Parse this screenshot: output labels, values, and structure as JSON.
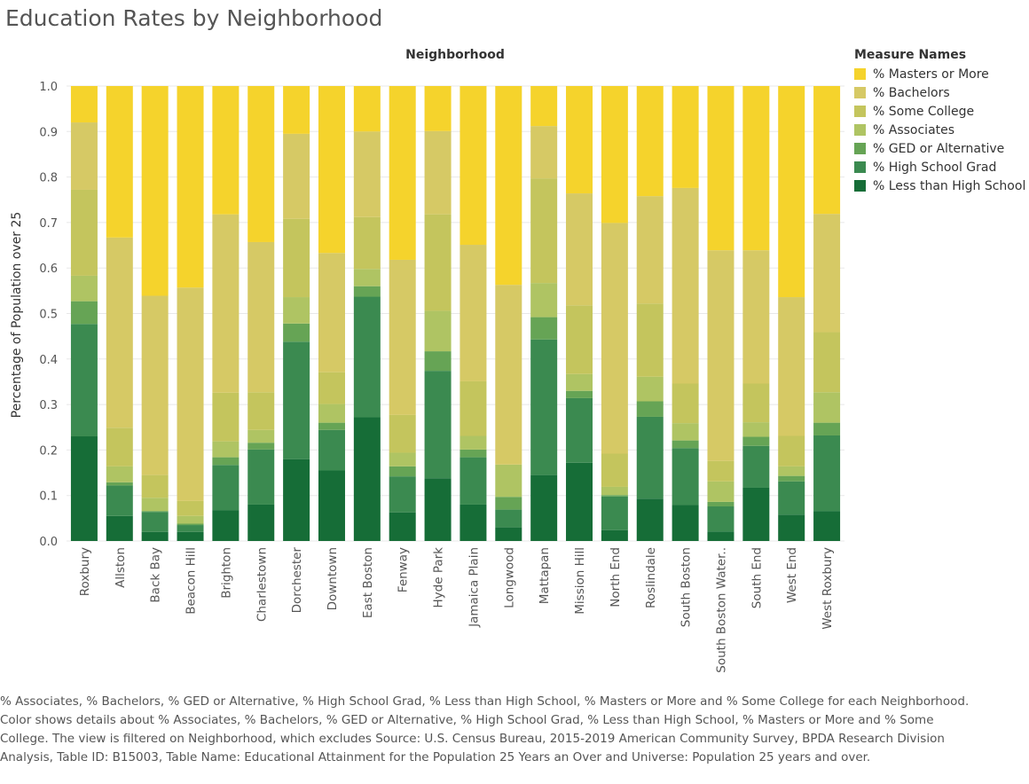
{
  "title": "Education Rates by Neighborhood",
  "legend": {
    "title": "Measure Names",
    "items": [
      {
        "label": "% Masters or More",
        "color": "#f5d32c"
      },
      {
        "label": "% Bachelors",
        "color": "#d6c965"
      },
      {
        "label": "% Some College",
        "color": "#c4c55d"
      },
      {
        "label": "% Associates",
        "color": "#afc463"
      },
      {
        "label": "% GED or Alternative",
        "color": "#66a455"
      },
      {
        "label": "% High School Grad",
        "color": "#3b8a50"
      },
      {
        "label": "% Less than High School",
        "color": "#166d37"
      }
    ]
  },
  "caption": "% Associates, % Bachelors, % GED or Alternative, % High School Grad, % Less than High School, % Masters or More and % Some College for each Neighborhood.  Color shows details about % Associates, % Bachelors, % GED or Alternative, % High School Grad, % Less than High School, % Masters or More and % Some College. The view is filtered on Neighborhood, which excludes Source: U.S. Census Bureau, 2015-2019 American Community Survey, BPDA Research Division Analysis, Table ID:  B15003, Table Name: Educational Attainment for the Population 25 Years an Over and Universe: Population 25 years and over.",
  "chart_data": {
    "type": "bar",
    "stacked": true,
    "title": "Education Rates by Neighborhood",
    "xlabel": "Neighborhood",
    "ylabel": "Percentage of Population over 25",
    "ylim": [
      0,
      1.0
    ],
    "yticks": [
      "0.0",
      "0.1",
      "0.2",
      "0.3",
      "0.4",
      "0.5",
      "0.6",
      "0.7",
      "0.8",
      "0.9",
      "1.0"
    ],
    "grid": true,
    "legend_position": "right",
    "categories": [
      "Roxbury",
      "Allston",
      "Back Bay",
      "Beacon Hill",
      "Brighton",
      "Charlestown",
      "Dorchester",
      "Downtown",
      "East Boston",
      "Fenway",
      "Hyde Park",
      "Jamaica Plain",
      "Longwood",
      "Mattapan",
      "Mission Hill",
      "North End",
      "Roslindale",
      "South Boston",
      "South Boston Water..",
      "South End",
      "West End",
      "West Roxbury"
    ],
    "series": [
      {
        "name": "% Less than High School",
        "color": "#166d37",
        "values": [
          0.23,
          0.055,
          0.02,
          0.02,
          0.068,
          0.08,
          0.18,
          0.155,
          0.272,
          0.063,
          0.138,
          0.08,
          0.03,
          0.145,
          0.172,
          0.024,
          0.093,
          0.079,
          0.021,
          0.117,
          0.058,
          0.066
        ]
      },
      {
        "name": "% High School Grad",
        "color": "#3b8a50",
        "values": [
          0.247,
          0.067,
          0.044,
          0.015,
          0.099,
          0.121,
          0.258,
          0.089,
          0.265,
          0.079,
          0.236,
          0.104,
          0.039,
          0.298,
          0.142,
          0.074,
          0.18,
          0.125,
          0.055,
          0.092,
          0.073,
          0.166
        ]
      },
      {
        "name": "% GED or Alternative",
        "color": "#66a455",
        "values": [
          0.05,
          0.007,
          0.002,
          0.003,
          0.017,
          0.015,
          0.04,
          0.016,
          0.023,
          0.022,
          0.043,
          0.017,
          0.028,
          0.049,
          0.016,
          0.003,
          0.034,
          0.017,
          0.01,
          0.02,
          0.012,
          0.028
        ]
      },
      {
        "name": "% Associates",
        "color": "#afc463",
        "values": [
          0.056,
          0.035,
          0.029,
          0.017,
          0.035,
          0.028,
          0.058,
          0.041,
          0.038,
          0.03,
          0.089,
          0.03,
          0.071,
          0.075,
          0.037,
          0.018,
          0.054,
          0.038,
          0.045,
          0.032,
          0.021,
          0.067
        ]
      },
      {
        "name": "% Some College",
        "color": "#c4c55d",
        "values": [
          0.189,
          0.085,
          0.05,
          0.033,
          0.107,
          0.083,
          0.172,
          0.07,
          0.114,
          0.083,
          0.212,
          0.12,
          0.0,
          0.23,
          0.151,
          0.073,
          0.161,
          0.087,
          0.045,
          0.085,
          0.067,
          0.132
        ]
      },
      {
        "name": "% Bachelors",
        "color": "#d6c965",
        "values": [
          0.148,
          0.418,
          0.394,
          0.469,
          0.392,
          0.33,
          0.187,
          0.262,
          0.188,
          0.341,
          0.183,
          0.3,
          0.395,
          0.115,
          0.246,
          0.507,
          0.236,
          0.43,
          0.463,
          0.293,
          0.305,
          0.26
        ]
      },
      {
        "name": "% Masters or More",
        "color": "#f5d32c",
        "values": [
          0.08,
          0.333,
          0.461,
          0.443,
          0.282,
          0.343,
          0.105,
          0.367,
          0.1,
          0.382,
          0.099,
          0.349,
          0.437,
          0.088,
          0.236,
          0.301,
          0.242,
          0.224,
          0.361,
          0.361,
          0.464,
          0.281
        ]
      }
    ]
  }
}
